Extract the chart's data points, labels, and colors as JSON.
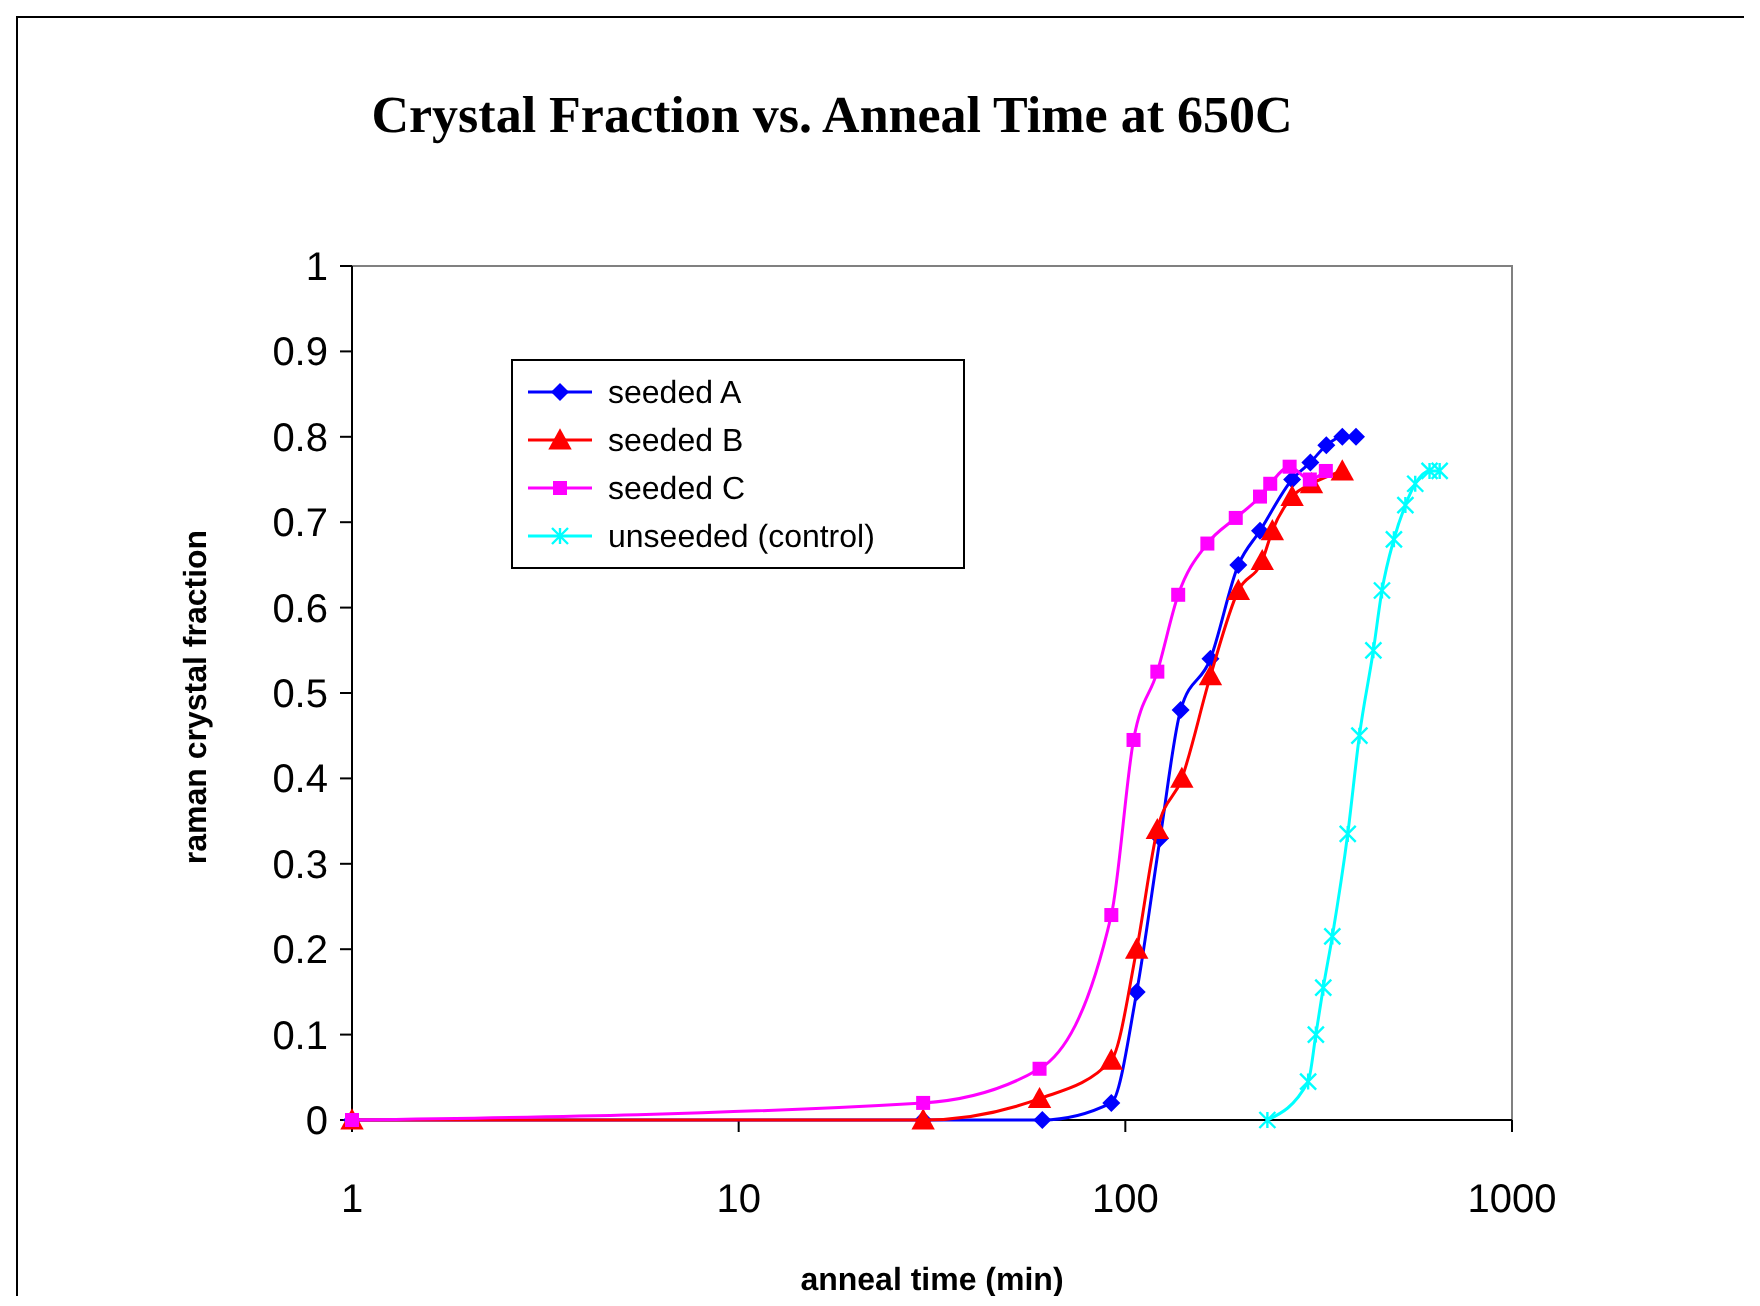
{
  "chart_data": {
    "type": "line",
    "title": "Crystal Fraction vs. Anneal Time at 650C",
    "xlabel": "anneal time (min)",
    "ylabel": "raman crystal fraction",
    "log": "x",
    "xlim": [
      1,
      1000
    ],
    "xticks": [
      1,
      10,
      100,
      1000
    ],
    "ylim": [
      0,
      1
    ],
    "yticks": [
      0,
      0.1,
      0.2,
      0.3,
      0.4,
      0.5,
      0.6,
      0.7,
      0.8,
      0.9,
      1
    ],
    "grid": false,
    "legend": "top left",
    "series": [
      {
        "name": "seeded A",
        "color": "#0000ff",
        "marker": "diamond",
        "x": [
          1,
          30,
          61,
          92,
          107,
          123,
          139,
          166,
          196,
          223,
          270,
          301,
          331,
          364,
          395
        ],
        "values": [
          0,
          0,
          0,
          0.02,
          0.15,
          0.33,
          0.48,
          0.54,
          0.65,
          0.69,
          0.75,
          0.77,
          0.79,
          0.8,
          0.8
        ]
      },
      {
        "name": "seeded B",
        "color": "#ff0000",
        "marker": "triangle",
        "x": [
          1,
          30,
          60,
          92,
          107,
          121,
          140,
          166,
          196,
          226,
          240,
          270,
          303,
          364
        ],
        "values": [
          0,
          0,
          0.025,
          0.07,
          0.2,
          0.34,
          0.4,
          0.52,
          0.62,
          0.655,
          0.69,
          0.73,
          0.745,
          0.76
        ]
      },
      {
        "name": "seeded C",
        "color": "#ff00ff",
        "marker": "square",
        "x": [
          1,
          30,
          60,
          92,
          105,
          121,
          137,
          163,
          193,
          223,
          237,
          266,
          300,
          330
        ],
        "values": [
          0,
          0.02,
          0.06,
          0.24,
          0.445,
          0.525,
          0.615,
          0.675,
          0.705,
          0.73,
          0.745,
          0.765,
          0.75,
          0.76
        ]
      },
      {
        "name": "unseeded (control)",
        "color": "#00ffff",
        "marker": "cross",
        "x": [
          233,
          297,
          311,
          325,
          343,
          376,
          403,
          438,
          461,
          495,
          530,
          562,
          612,
          650
        ],
        "values": [
          0,
          0.045,
          0.1,
          0.155,
          0.215,
          0.335,
          0.45,
          0.55,
          0.62,
          0.68,
          0.72,
          0.745,
          0.76,
          0.76
        ]
      }
    ]
  }
}
